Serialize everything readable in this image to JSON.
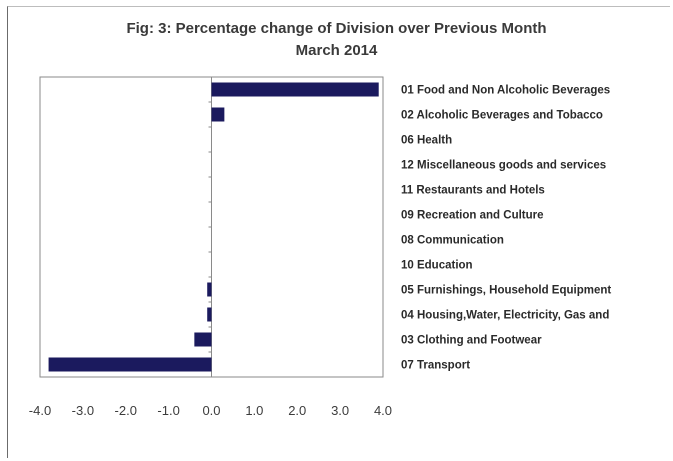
{
  "chart_data": {
    "type": "bar",
    "orientation": "horizontal",
    "title": "Fig: 3: Percentage change of Division over Previous Month",
    "subtitle": "March 2014",
    "xlabel": "",
    "ylabel": "",
    "xlim": [
      -4.0,
      4.0
    ],
    "xticks": [
      "-4.0",
      "-3.0",
      "-2.0",
      "-1.0",
      "0.0",
      "1.0",
      "2.0",
      "3.0",
      "4.0"
    ],
    "categories": [
      "01 Food and Non Alcoholic Beverages",
      "02 Alcoholic Beverages and Tobacco",
      "06 Health",
      "12 Miscellaneous goods and services",
      "11 Restaurants and Hotels",
      "09 Recreation and Culture",
      "08 Communication",
      "10 Education",
      "05 Furnishings, Household Equipment",
      "04 Housing,Water, Electricity, Gas and",
      "03 Clothing and Footwear",
      "07 Transport"
    ],
    "values": [
      3.9,
      0.3,
      0.0,
      0.0,
      0.0,
      0.0,
      0.0,
      0.0,
      -0.1,
      -0.1,
      -0.4,
      -3.8
    ],
    "bar_color": "#1b1a5e",
    "grid": false,
    "legend": "none"
  }
}
